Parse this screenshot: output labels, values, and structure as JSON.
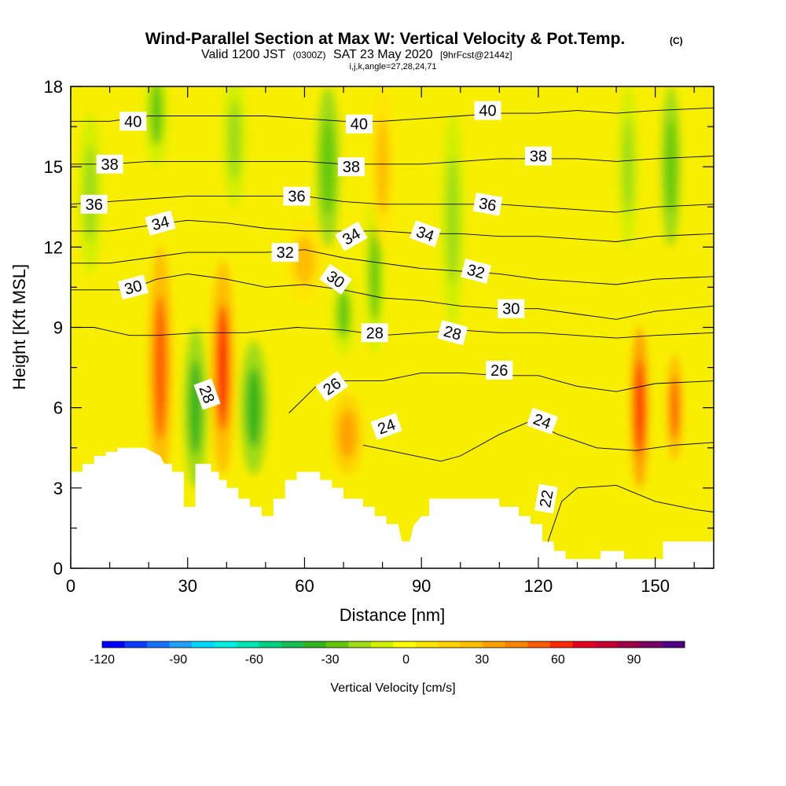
{
  "chart_data": {
    "type": "heatmap",
    "title": "Wind-Parallel Section at Max W: Vertical Velocity & Pot.Temp.",
    "title_mark": "(C)",
    "subtitle_main": "Valid 1200 JST",
    "subtitle_utc": "(0300Z)",
    "subtitle_date": "SAT 23 May 2020",
    "subtitle_fcst": "[9hrFcst@2144z]",
    "subtitle2": "i,j,k,angle=27,28,24,71",
    "xlabel": "Distance [nm]",
    "ylabel": "Height [Kft MSL]",
    "xlim": [
      0,
      165
    ],
    "ylim": [
      0,
      18
    ],
    "x_ticks": [
      "0",
      "30",
      "60",
      "90",
      "120",
      "150"
    ],
    "y_ticks": [
      "0",
      "3",
      "6",
      "9",
      "12",
      "15",
      "18"
    ],
    "colorbar": {
      "label": "Vertical Velocity [cm/s]",
      "range": [
        -120,
        110
      ],
      "tick_labels": [
        "-120",
        "-90",
        "-60",
        "-30",
        "0",
        "30",
        "60",
        "90"
      ],
      "colors": [
        "#0000ff",
        "#0a3cff",
        "#1670ff",
        "#1ea0ff",
        "#00d8ff",
        "#00f0e6",
        "#00e6b4",
        "#00d282",
        "#14be50",
        "#32b41e",
        "#64c80a",
        "#a0dc14",
        "#d2f000",
        "#ffff00",
        "#ffe600",
        "#ffd200",
        "#ffbe00",
        "#ffa000",
        "#ff8200",
        "#ff5a00",
        "#ff2800",
        "#e6001e",
        "#c80032",
        "#a00046",
        "#780064",
        "#500082"
      ]
    },
    "terrain": [
      [
        0,
        3.6
      ],
      [
        3,
        3.6
      ],
      [
        3,
        3.9
      ],
      [
        6,
        3.9
      ],
      [
        6,
        4.2
      ],
      [
        9,
        4.2
      ],
      [
        9,
        4.35
      ],
      [
        12,
        4.35
      ],
      [
        12,
        4.5
      ],
      [
        19,
        4.5
      ],
      [
        21,
        4.35
      ],
      [
        23,
        4.2
      ],
      [
        24,
        3.9
      ],
      [
        26,
        3.9
      ],
      [
        26,
        3.6
      ],
      [
        29,
        3.6
      ],
      [
        29,
        2.3
      ],
      [
        32,
        2.3
      ],
      [
        32,
        3.9
      ],
      [
        36,
        3.9
      ],
      [
        36,
        3.6
      ],
      [
        38,
        3.6
      ],
      [
        38,
        3.3
      ],
      [
        40,
        3.3
      ],
      [
        40,
        3.0
      ],
      [
        43,
        3.0
      ],
      [
        43,
        2.6
      ],
      [
        46,
        2.6
      ],
      [
        46,
        2.3
      ],
      [
        49,
        2.3
      ],
      [
        49,
        1.95
      ],
      [
        52,
        1.95
      ],
      [
        52,
        2.6
      ],
      [
        55,
        2.6
      ],
      [
        55,
        3.3
      ],
      [
        58,
        3.3
      ],
      [
        58,
        3.6
      ],
      [
        64,
        3.6
      ],
      [
        64,
        3.3
      ],
      [
        67,
        3.3
      ],
      [
        67,
        3.0
      ],
      [
        70,
        3.0
      ],
      [
        70,
        2.6
      ],
      [
        75,
        2.6
      ],
      [
        75,
        2.3
      ],
      [
        78,
        2.3
      ],
      [
        78,
        1.95
      ],
      [
        81,
        1.95
      ],
      [
        81,
        1.65
      ],
      [
        84,
        1.65
      ],
      [
        85,
        1.0
      ],
      [
        87,
        1.0
      ],
      [
        88,
        1.6
      ],
      [
        90,
        1.95
      ],
      [
        92,
        1.95
      ],
      [
        92,
        2.6
      ],
      [
        110,
        2.6
      ],
      [
        110,
        2.3
      ],
      [
        115,
        2.3
      ],
      [
        115,
        1.95
      ],
      [
        118,
        1.95
      ],
      [
        118,
        1.65
      ],
      [
        121,
        1.65
      ],
      [
        121,
        1.0
      ],
      [
        124,
        1.0
      ],
      [
        124,
        0.65
      ],
      [
        127,
        0.65
      ],
      [
        127,
        0.35
      ],
      [
        130,
        0.35
      ],
      [
        136,
        0.35
      ],
      [
        136,
        0.65
      ],
      [
        142,
        0.65
      ],
      [
        142,
        0.35
      ],
      [
        152,
        0.35
      ],
      [
        152,
        1.0
      ],
      [
        165,
        1.0
      ]
    ],
    "w_cells": [
      {
        "x": 23,
        "z": 7.5,
        "rx": 3,
        "rz": 4.5,
        "w": 55
      },
      {
        "x": 39,
        "z": 7.5,
        "rx": 3,
        "rz": 4.0,
        "w": 58
      },
      {
        "x": 32,
        "z": 6.0,
        "rx": 3,
        "rz": 3.0,
        "w": -38
      },
      {
        "x": 47,
        "z": 6.0,
        "rx": 3.5,
        "rz": 2.5,
        "w": -36
      },
      {
        "x": 22,
        "z": 17.0,
        "rx": 3,
        "rz": 2.0,
        "w": -25
      },
      {
        "x": 42,
        "z": 16.0,
        "rx": 3,
        "rz": 2.5,
        "w": -22
      },
      {
        "x": 66,
        "z": 15.0,
        "rx": 3,
        "rz": 3.0,
        "w": -28
      },
      {
        "x": 70,
        "z": 9.5,
        "rx": 3,
        "rz": 1.5,
        "w": -25
      },
      {
        "x": 78,
        "z": 11.0,
        "rx": 2.5,
        "rz": 3.0,
        "w": -26
      },
      {
        "x": 5,
        "z": 14.0,
        "rx": 3,
        "rz": 3.0,
        "w": -20
      },
      {
        "x": 146,
        "z": 6.0,
        "rx": 2.2,
        "rz": 3.0,
        "w": 65
      },
      {
        "x": 155,
        "z": 6.0,
        "rx": 2.0,
        "rz": 2.0,
        "w": 55
      },
      {
        "x": 154,
        "z": 15.0,
        "rx": 2.5,
        "rz": 3.0,
        "w": -28
      },
      {
        "x": 143,
        "z": 15.0,
        "rx": 2.5,
        "rz": 3.0,
        "w": -22
      },
      {
        "x": 98,
        "z": 13.0,
        "rx": 3,
        "rz": 4.0,
        "w": -15
      },
      {
        "x": 71,
        "z": 5.0,
        "rx": 4,
        "rz": 1.5,
        "w": 35
      },
      {
        "x": 60,
        "z": 11.5,
        "rx": 5,
        "rz": 1.5,
        "w": 22
      },
      {
        "x": 80,
        "z": 15.0,
        "rx": 3,
        "rz": 3.0,
        "w": 22
      }
    ],
    "theta_levels": [
      22,
      24,
      26,
      28,
      30,
      32,
      34,
      36,
      38,
      40
    ],
    "theta_lines": [
      {
        "level": 22,
        "points": [
          [
            122,
            0.8
          ],
          [
            126,
            2.5
          ],
          [
            130,
            3.0
          ],
          [
            140,
            3.1
          ],
          [
            150,
            2.5
          ],
          [
            160,
            2.2
          ],
          [
            165,
            2.1
          ]
        ]
      },
      {
        "level": 24,
        "points": [
          [
            75,
            4.6
          ],
          [
            85,
            4.3
          ],
          [
            95,
            4.0
          ],
          [
            100,
            4.2
          ],
          [
            110,
            5.0
          ],
          [
            118,
            5.5
          ],
          [
            125,
            5.0
          ],
          [
            135,
            4.5
          ],
          [
            145,
            4.4
          ],
          [
            155,
            4.6
          ],
          [
            165,
            4.7
          ]
        ]
      },
      {
        "level": 26,
        "points": [
          [
            56,
            5.8
          ],
          [
            63,
            6.8
          ],
          [
            70,
            7.0
          ],
          [
            80,
            7.0
          ],
          [
            90,
            7.3
          ],
          [
            100,
            7.3
          ],
          [
            110,
            7.2
          ],
          [
            120,
            7.2
          ],
          [
            130,
            6.8
          ],
          [
            140,
            6.6
          ],
          [
            150,
            6.9
          ],
          [
            165,
            7.0
          ]
        ]
      },
      {
        "level": 28,
        "points": [
          [
            0,
            9.0
          ],
          [
            6,
            9.0
          ],
          [
            15,
            8.7
          ],
          [
            22,
            8.7
          ],
          [
            33,
            8.8
          ],
          [
            45,
            8.8
          ],
          [
            58,
            9.0
          ],
          [
            70,
            8.9
          ],
          [
            80,
            8.7
          ],
          [
            90,
            8.8
          ],
          [
            100,
            8.9
          ],
          [
            110,
            8.8
          ],
          [
            120,
            8.8
          ],
          [
            130,
            8.7
          ],
          [
            140,
            8.6
          ],
          [
            150,
            8.7
          ],
          [
            165,
            8.8
          ]
        ]
      },
      {
        "level": 30,
        "points": [
          [
            0,
            10.4
          ],
          [
            8,
            10.4
          ],
          [
            15,
            10.4
          ],
          [
            22,
            10.8
          ],
          [
            30,
            11.0
          ],
          [
            40,
            10.8
          ],
          [
            50,
            10.5
          ],
          [
            60,
            10.6
          ],
          [
            70,
            10.4
          ],
          [
            80,
            10.1
          ],
          [
            90,
            10.0
          ],
          [
            100,
            9.8
          ],
          [
            110,
            9.7
          ],
          [
            120,
            9.7
          ],
          [
            130,
            9.5
          ],
          [
            140,
            9.3
          ],
          [
            150,
            9.6
          ],
          [
            165,
            9.8
          ]
        ]
      },
      {
        "level": 32,
        "points": [
          [
            0,
            11.4
          ],
          [
            10,
            11.4
          ],
          [
            20,
            11.6
          ],
          [
            30,
            11.8
          ],
          [
            40,
            11.8
          ],
          [
            50,
            11.8
          ],
          [
            60,
            11.9
          ],
          [
            70,
            11.6
          ],
          [
            80,
            11.4
          ],
          [
            90,
            11.2
          ],
          [
            100,
            11.1
          ],
          [
            110,
            11.0
          ],
          [
            120,
            10.8
          ],
          [
            130,
            10.7
          ],
          [
            140,
            10.6
          ],
          [
            150,
            10.8
          ],
          [
            165,
            10.9
          ]
        ]
      },
      {
        "level": 34,
        "points": [
          [
            0,
            12.6
          ],
          [
            10,
            12.6
          ],
          [
            20,
            12.8
          ],
          [
            30,
            13.0
          ],
          [
            40,
            12.9
          ],
          [
            50,
            12.7
          ],
          [
            60,
            12.6
          ],
          [
            70,
            12.6
          ],
          [
            80,
            12.6
          ],
          [
            90,
            12.5
          ],
          [
            100,
            12.5
          ],
          [
            110,
            12.4
          ],
          [
            120,
            12.4
          ],
          [
            130,
            12.3
          ],
          [
            140,
            12.2
          ],
          [
            150,
            12.4
          ],
          [
            165,
            12.5
          ]
        ]
      },
      {
        "level": 36,
        "points": [
          [
            0,
            13.6
          ],
          [
            10,
            13.7
          ],
          [
            20,
            13.8
          ],
          [
            30,
            13.9
          ],
          [
            40,
            13.9
          ],
          [
            50,
            13.9
          ],
          [
            60,
            13.9
          ],
          [
            70,
            13.7
          ],
          [
            80,
            13.6
          ],
          [
            90,
            13.6
          ],
          [
            100,
            13.6
          ],
          [
            110,
            13.6
          ],
          [
            120,
            13.5
          ],
          [
            130,
            13.4
          ],
          [
            140,
            13.3
          ],
          [
            150,
            13.5
          ],
          [
            165,
            13.6
          ]
        ]
      },
      {
        "level": 38,
        "points": [
          [
            0,
            15.1
          ],
          [
            10,
            15.1
          ],
          [
            20,
            15.2
          ],
          [
            30,
            15.2
          ],
          [
            40,
            15.2
          ],
          [
            50,
            15.2
          ],
          [
            60,
            15.2
          ],
          [
            70,
            15.1
          ],
          [
            80,
            15.1
          ],
          [
            90,
            15.1
          ],
          [
            100,
            15.2
          ],
          [
            110,
            15.3
          ],
          [
            120,
            15.3
          ],
          [
            130,
            15.3
          ],
          [
            140,
            15.2
          ],
          [
            150,
            15.3
          ],
          [
            165,
            15.4
          ]
        ]
      },
      {
        "level": 40,
        "points": [
          [
            0,
            16.7
          ],
          [
            10,
            16.7
          ],
          [
            20,
            16.9
          ],
          [
            30,
            16.9
          ],
          [
            40,
            16.9
          ],
          [
            50,
            16.9
          ],
          [
            60,
            16.8
          ],
          [
            70,
            16.7
          ],
          [
            80,
            16.7
          ],
          [
            90,
            16.8
          ],
          [
            100,
            16.9
          ],
          [
            110,
            17.0
          ],
          [
            120,
            17.0
          ],
          [
            130,
            17.1
          ],
          [
            140,
            17.0
          ],
          [
            150,
            17.1
          ],
          [
            165,
            17.2
          ]
        ]
      }
    ],
    "contour_labels": [
      {
        "text": "40",
        "x": 16,
        "z": 16.7,
        "angle": 0
      },
      {
        "text": "40",
        "x": 74,
        "z": 16.6,
        "angle": 0
      },
      {
        "text": "40",
        "x": 107,
        "z": 17.1,
        "angle": 0
      },
      {
        "text": "38",
        "x": 10,
        "z": 15.1,
        "angle": 0
      },
      {
        "text": "38",
        "x": 72,
        "z": 15.0,
        "angle": 0
      },
      {
        "text": "38",
        "x": 120,
        "z": 15.4,
        "angle": 0
      },
      {
        "text": "36",
        "x": 6,
        "z": 13.6,
        "angle": 0
      },
      {
        "text": "36",
        "x": 58,
        "z": 13.9,
        "angle": 0
      },
      {
        "text": "36",
        "x": 107,
        "z": 13.6,
        "angle": 10
      },
      {
        "text": "34",
        "x": 23,
        "z": 12.9,
        "angle": -15
      },
      {
        "text": "34",
        "x": 72,
        "z": 12.4,
        "angle": -30
      },
      {
        "text": "34",
        "x": 91,
        "z": 12.5,
        "angle": 20
      },
      {
        "text": "32",
        "x": 55,
        "z": 11.8,
        "angle": 0
      },
      {
        "text": "32",
        "x": 104,
        "z": 11.1,
        "angle": 15
      },
      {
        "text": "30",
        "x": 16,
        "z": 10.5,
        "angle": -15
      },
      {
        "text": "30",
        "x": 68,
        "z": 10.8,
        "angle": 35
      },
      {
        "text": "30",
        "x": 113,
        "z": 9.7,
        "angle": 0
      },
      {
        "text": "28",
        "x": 78,
        "z": 8.8,
        "angle": 0
      },
      {
        "text": "28",
        "x": 98,
        "z": 8.8,
        "angle": 15
      },
      {
        "text": "28",
        "x": 35,
        "z": 6.5,
        "angle": 70
      },
      {
        "text": "26",
        "x": 67,
        "z": 6.8,
        "angle": -35
      },
      {
        "text": "26",
        "x": 110,
        "z": 7.4,
        "angle": 0
      },
      {
        "text": "24",
        "x": 81,
        "z": 5.3,
        "angle": -20
      },
      {
        "text": "24",
        "x": 121,
        "z": 5.5,
        "angle": 20
      },
      {
        "text": "22",
        "x": 122,
        "z": 2.6,
        "angle": -80
      }
    ]
  }
}
